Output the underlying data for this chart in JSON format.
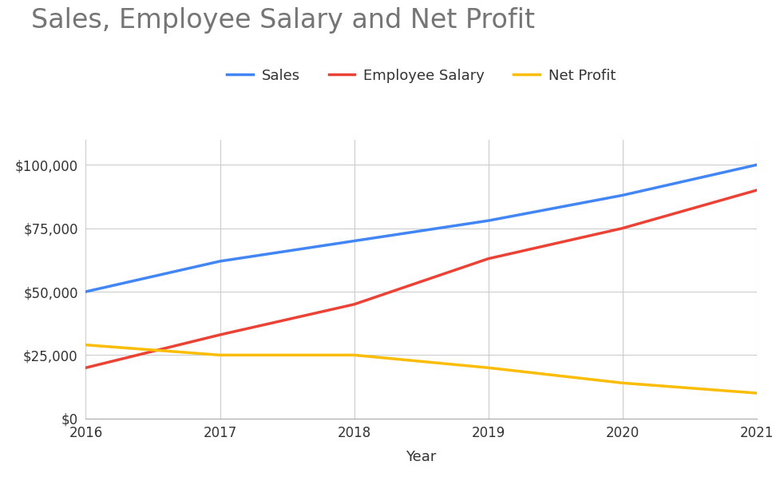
{
  "title": "Sales, Employee Salary and Net Profit",
  "xlabel": "Year",
  "years": [
    2016,
    2017,
    2018,
    2019,
    2020,
    2021
  ],
  "sales": [
    50000,
    62000,
    70000,
    78000,
    88000,
    100000
  ],
  "employee_salary": [
    20000,
    33000,
    45000,
    63000,
    75000,
    90000
  ],
  "net_profit": [
    29000,
    25000,
    25000,
    20000,
    14000,
    10000
  ],
  "sales_color": "#4285F4",
  "salary_color": "#EA4335",
  "profit_color": "#FBBC04",
  "title_color": "#757575",
  "background_color": "#ffffff",
  "plot_bg_color": "#ffffff",
  "grid_color": "#cccccc",
  "ylim": [
    0,
    110000
  ],
  "yticks": [
    0,
    25000,
    50000,
    75000,
    100000
  ],
  "title_fontsize": 24,
  "legend_fontsize": 13,
  "axis_label_fontsize": 13,
  "tick_fontsize": 12,
  "line_width": 2.5,
  "sales_label": "Sales",
  "salary_label": "Employee Salary",
  "profit_label": "Net Profit"
}
